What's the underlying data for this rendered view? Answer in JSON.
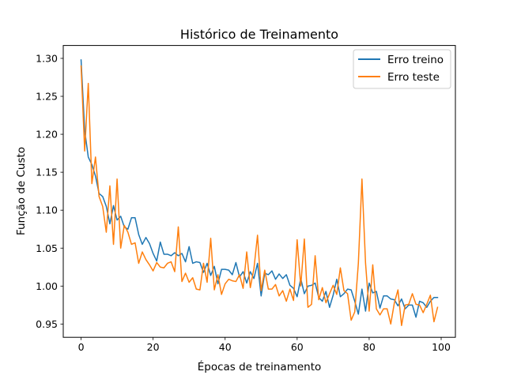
{
  "chart_data": {
    "type": "line",
    "title": "Histórico de Treinamento",
    "xlabel": "Épocas de treinamento",
    "ylabel": "Função de Custo",
    "xlim": [
      -4.95,
      103.95
    ],
    "ylim": [
      0.9325,
      1.317
    ],
    "xticks": [
      0,
      20,
      40,
      60,
      80,
      100
    ],
    "xtick_labels": [
      "0",
      "20",
      "40",
      "60",
      "80",
      "100"
    ],
    "yticks": [
      0.95,
      1.0,
      1.05,
      1.1,
      1.15,
      1.2,
      1.25,
      1.3
    ],
    "ytick_labels": [
      "0.95",
      "1.00",
      "1.05",
      "1.10",
      "1.15",
      "1.20",
      "1.25",
      "1.30"
    ],
    "grid": false,
    "legend_position": "top-right",
    "x": [
      0,
      1,
      2,
      3,
      4,
      5,
      6,
      7,
      8,
      9,
      10,
      11,
      12,
      13,
      14,
      15,
      16,
      17,
      18,
      19,
      20,
      21,
      22,
      23,
      24,
      25,
      26,
      27,
      28,
      29,
      30,
      31,
      32,
      33,
      34,
      35,
      36,
      37,
      38,
      39,
      40,
      41,
      42,
      43,
      44,
      45,
      46,
      47,
      48,
      49,
      50,
      51,
      52,
      53,
      54,
      55,
      56,
      57,
      58,
      59,
      60,
      61,
      62,
      63,
      64,
      65,
      66,
      67,
      68,
      69,
      70,
      71,
      72,
      73,
      74,
      75,
      76,
      77,
      78,
      79,
      80,
      81,
      82,
      83,
      84,
      85,
      86,
      87,
      88,
      89,
      90,
      91,
      92,
      93,
      94,
      95,
      96,
      97,
      98,
      99
    ],
    "series": [
      {
        "name": "Erro treino",
        "color": "#1f77b4",
        "values": [
          1.298,
          1.205,
          1.17,
          1.16,
          1.145,
          1.122,
          1.118,
          1.105,
          1.082,
          1.106,
          1.087,
          1.092,
          1.078,
          1.075,
          1.09,
          1.09,
          1.068,
          1.055,
          1.064,
          1.056,
          1.043,
          1.033,
          1.058,
          1.042,
          1.042,
          1.04,
          1.044,
          1.04,
          1.043,
          1.032,
          1.052,
          1.03,
          1.032,
          1.031,
          1.018,
          1.03,
          1.014,
          1.026,
          1.003,
          1.022,
          1.022,
          1.021,
          1.015,
          1.031,
          1.012,
          1.019,
          1.004,
          1.019,
          1.01,
          1.03,
          0.987,
          1.017,
          1.015,
          1.02,
          1.009,
          1.016,
          1.01,
          1.015,
          1.001,
          0.997,
          0.986,
          1.01,
          0.99,
          1.0,
          1.001,
          1.004,
          0.985,
          0.98,
          0.993,
          0.972,
          0.988,
          1.009,
          0.986,
          0.99,
          0.996,
          0.995,
          0.98,
          0.963,
          0.996,
          0.967,
          1.004,
          0.991,
          0.993,
          0.971,
          0.987,
          0.987,
          0.983,
          0.982,
          0.974,
          0.983,
          0.97,
          0.975,
          0.975,
          0.959,
          0.98,
          0.978,
          0.972,
          0.98,
          0.985,
          0.985
        ]
      },
      {
        "name": "Erro teste",
        "color": "#ff7f0e",
        "values": [
          1.29,
          1.178,
          1.267,
          1.135,
          1.17,
          1.118,
          1.105,
          1.071,
          1.132,
          1.055,
          1.141,
          1.05,
          1.08,
          1.071,
          1.055,
          1.057,
          1.03,
          1.045,
          1.035,
          1.028,
          1.02,
          1.031,
          1.025,
          1.024,
          1.03,
          1.032,
          1.019,
          1.078,
          1.006,
          1.017,
          1.005,
          1.011,
          0.996,
          0.995,
          1.03,
          1.005,
          1.063,
          0.995,
          1.015,
          0.989,
          1.003,
          1.009,
          1.007,
          1.006,
          1.015,
          0.997,
          1.045,
          0.998,
          1.023,
          1.067,
          0.994,
          1.021,
          0.996,
          0.996,
          1.002,
          0.987,
          0.994,
          0.98,
          0.996,
          0.981,
          1.061,
          1.0,
          1.062,
          0.972,
          0.976,
          1.04,
          0.982,
          0.998,
          0.978,
          0.99,
          1.001,
          0.989,
          1.024,
          0.994,
          0.99,
          0.955,
          0.966,
          1.03,
          1.141,
          1.03,
          0.967,
          1.028,
          0.97,
          0.962,
          0.97,
          0.97,
          0.95,
          0.978,
          0.995,
          0.948,
          0.975,
          0.976,
          0.99,
          0.976,
          0.975,
          0.965,
          0.976,
          0.988,
          0.953,
          0.972
        ]
      }
    ]
  }
}
